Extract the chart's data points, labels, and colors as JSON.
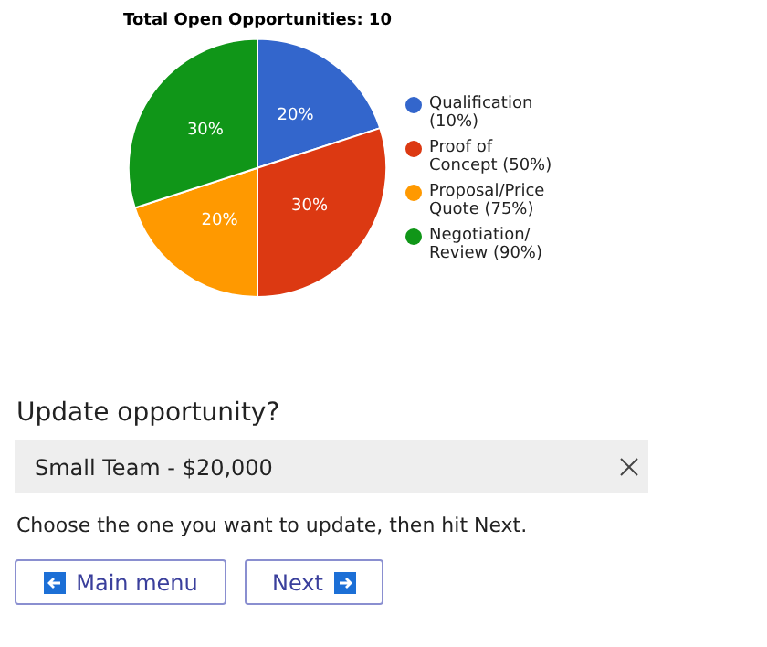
{
  "chart_data": {
    "type": "pie",
    "title": "Total Open Opportunities: 10",
    "categories": [
      "Qualification (10%)",
      "Proof of Concept (50%)",
      "Proposal/Price Quote (75%)",
      "Negotiation/ Review (90%)"
    ],
    "values": [
      20,
      30,
      20,
      30
    ],
    "colors": [
      "#3366cc",
      "#dc3912",
      "#ff9900",
      "#109618"
    ],
    "value_labels": [
      "20%",
      "30%",
      "20%",
      "30%"
    ],
    "legend": "right",
    "annotations": [
      "Update opportunity?",
      "Small Team - $20,000",
      "Choose the one you want to update, then hit Next.",
      "Main menu",
      "Next"
    ]
  }
}
